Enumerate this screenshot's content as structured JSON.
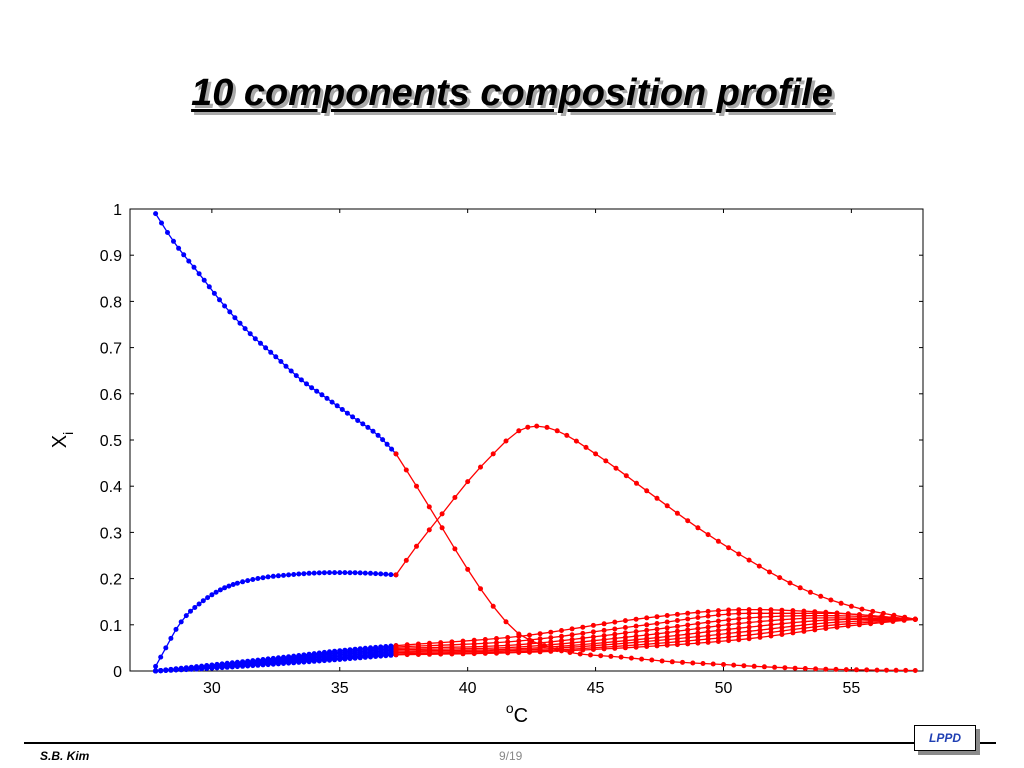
{
  "slide": {
    "title": "10 components composition profile",
    "author": "S.B. Kim",
    "page": "9/19",
    "logo_text": "LPPD"
  },
  "chart_data": {
    "type": "line",
    "xlim": [
      26.8,
      57.8
    ],
    "ylim": [
      0,
      1
    ],
    "x_ticks": [
      30,
      35,
      40,
      45,
      50,
      55
    ],
    "y_ticks": [
      0,
      0.1,
      0.2,
      0.3,
      0.4,
      0.5,
      0.6,
      0.7,
      0.8,
      0.9,
      1
    ],
    "x_tick_labels": [
      "30",
      "35",
      "40",
      "45",
      "50",
      "55"
    ],
    "y_tick_labels": [
      "0",
      "0.1",
      "0.2",
      "0.3",
      "0.4",
      "0.5",
      "0.6",
      "0.7",
      "0.8",
      "0.9",
      "1"
    ],
    "xlabel_base": "C",
    "xlabel_sup": "o",
    "ylabel_base": "X",
    "ylabel_sub": "i",
    "grid": false,
    "colors": {
      "section1": "#0000ff",
      "section2": "#ff0000"
    },
    "series": [
      {
        "section": 1,
        "x": [
          27.8,
          28.5,
          29.5,
          30.5,
          31.5,
          32.5,
          33.5,
          34.5,
          35.5,
          36.5,
          37.2
        ],
        "y": [
          0.99,
          0.93,
          0.86,
          0.79,
          0.73,
          0.68,
          0.63,
          0.59,
          0.55,
          0.51,
          0.47
        ]
      },
      {
        "section": 1,
        "x": [
          27.8,
          28.2,
          28.6,
          29.0,
          29.5,
          30.0,
          30.5,
          31.0,
          32.0,
          33.0,
          34.0,
          35.0,
          36.0,
          37.2
        ],
        "y": [
          0.01,
          0.05,
          0.09,
          0.12,
          0.145,
          0.165,
          0.18,
          0.19,
          0.202,
          0.208,
          0.212,
          0.213,
          0.212,
          0.208
        ]
      },
      {
        "section": 1,
        "x": [
          27.8,
          30,
          33,
          35,
          37.2
        ],
        "y": [
          0.0,
          0.013,
          0.031,
          0.044,
          0.055
        ]
      },
      {
        "section": 1,
        "x": [
          27.8,
          30,
          33,
          35,
          37.2
        ],
        "y": [
          0.0,
          0.012,
          0.029,
          0.041,
          0.052
        ]
      },
      {
        "section": 1,
        "x": [
          27.8,
          30,
          33,
          35,
          37.2
        ],
        "y": [
          0.0,
          0.011,
          0.027,
          0.038,
          0.049
        ]
      },
      {
        "section": 1,
        "x": [
          27.8,
          30,
          33,
          35,
          37.2
        ],
        "y": [
          0.0,
          0.01,
          0.025,
          0.035,
          0.046
        ]
      },
      {
        "section": 1,
        "x": [
          27.8,
          30,
          33,
          35,
          37.2
        ],
        "y": [
          0.0,
          0.009,
          0.023,
          0.032,
          0.043
        ]
      },
      {
        "section": 1,
        "x": [
          27.8,
          30,
          33,
          35,
          37.2
        ],
        "y": [
          0.0,
          0.008,
          0.021,
          0.029,
          0.04
        ]
      },
      {
        "section": 1,
        "x": [
          27.8,
          30,
          33,
          35,
          37.2
        ],
        "y": [
          0.0,
          0.007,
          0.019,
          0.027,
          0.037
        ]
      },
      {
        "section": 1,
        "x": [
          27.8,
          30,
          33,
          35,
          37.2
        ],
        "y": [
          0.0,
          0.006,
          0.017,
          0.025,
          0.035
        ]
      },
      {
        "section": 2,
        "x": [
          37.2,
          38.0,
          39.0,
          40.0,
          41.0,
          42.0,
          43.0,
          44.0,
          46.0,
          48.0,
          50.0,
          52.0,
          54.0,
          56.0,
          57.5
        ],
        "y": [
          0.47,
          0.4,
          0.31,
          0.22,
          0.14,
          0.08,
          0.055,
          0.04,
          0.03,
          0.02,
          0.014,
          0.008,
          0.004,
          0.002,
          0.001
        ]
      },
      {
        "section": 2,
        "x": [
          37.2,
          38.0,
          39.0,
          40.0,
          41.0,
          42.0,
          42.7,
          43.5,
          45.0,
          47.0,
          49.0,
          51.0,
          53.0,
          55.0,
          57.5
        ],
        "y": [
          0.208,
          0.27,
          0.34,
          0.41,
          0.47,
          0.52,
          0.53,
          0.52,
          0.47,
          0.39,
          0.31,
          0.24,
          0.18,
          0.14,
          0.112
        ]
      },
      {
        "section": 2,
        "x": [
          37.2,
          42,
          47,
          51,
          54,
          57.5
        ],
        "y": [
          0.055,
          0.075,
          0.115,
          0.133,
          0.127,
          0.112
        ]
      },
      {
        "section": 2,
        "x": [
          37.2,
          42,
          47,
          51,
          54,
          57.5
        ],
        "y": [
          0.052,
          0.065,
          0.1,
          0.125,
          0.125,
          0.112
        ]
      },
      {
        "section": 2,
        "x": [
          37.2,
          42,
          47,
          51,
          54,
          57.5
        ],
        "y": [
          0.049,
          0.057,
          0.088,
          0.115,
          0.12,
          0.112
        ]
      },
      {
        "section": 2,
        "x": [
          37.2,
          42,
          47,
          51,
          54,
          57.5
        ],
        "y": [
          0.046,
          0.052,
          0.078,
          0.105,
          0.115,
          0.112
        ]
      },
      {
        "section": 2,
        "x": [
          37.2,
          42,
          47,
          51,
          54,
          57.5
        ],
        "y": [
          0.043,
          0.048,
          0.07,
          0.095,
          0.11,
          0.112
        ]
      },
      {
        "section": 2,
        "x": [
          37.2,
          42,
          47,
          51,
          54,
          57.5
        ],
        "y": [
          0.04,
          0.045,
          0.064,
          0.086,
          0.104,
          0.112
        ]
      },
      {
        "section": 2,
        "x": [
          37.2,
          42,
          47,
          51,
          54,
          57.5
        ],
        "y": [
          0.037,
          0.042,
          0.058,
          0.078,
          0.098,
          0.112
        ]
      },
      {
        "section": 2,
        "x": [
          37.2,
          42,
          47,
          51,
          54,
          57.5
        ],
        "y": [
          0.035,
          0.04,
          0.053,
          0.07,
          0.092,
          0.112
        ]
      }
    ]
  }
}
